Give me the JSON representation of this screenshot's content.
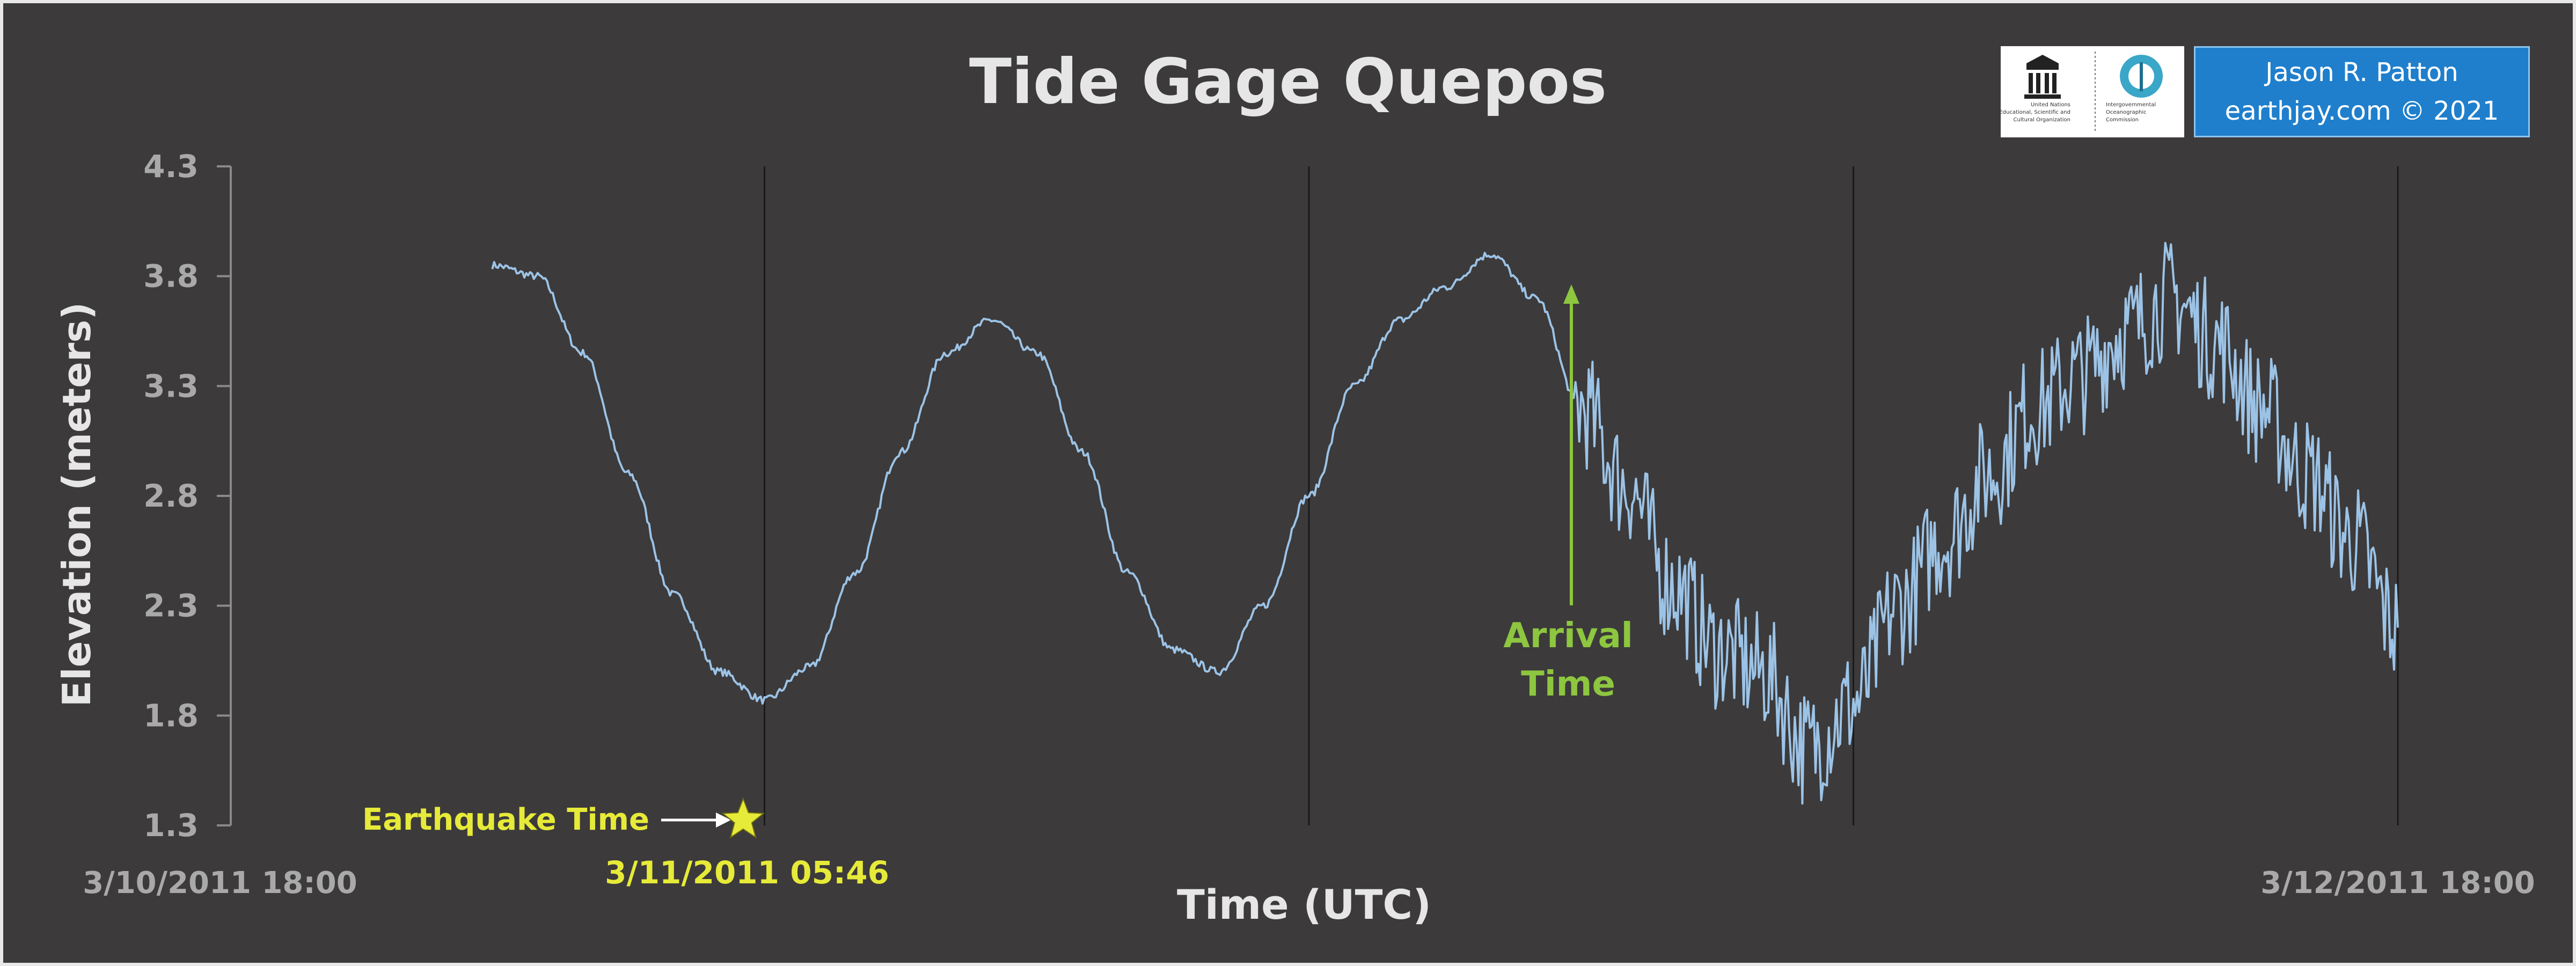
{
  "chart_data": {
    "type": "line",
    "title": "Tide Gage Quepos",
    "xlabel": "Time (UTC)",
    "ylabel": "Elevation (meters)",
    "ylim": [
      1.3,
      4.3
    ],
    "yticks": [
      "4.3",
      "3.8",
      "3.3",
      "2.8",
      "2.3",
      "1.8",
      "1.3"
    ],
    "xlim": [
      "2011-03-10 18:00",
      "2011-03-12 18:00"
    ],
    "xtick_labels": {
      "start": "3/10/2011 18:00",
      "end": "3/12/2011 18:00"
    },
    "vertical_gridlines": [
      "2011-03-11 06:00",
      "2011-03-11 18:00",
      "2011-03-12 06:00",
      "2011-03-12 18:00"
    ],
    "grid": "vertical-only",
    "series": [
      {
        "color": "#9cc3e6",
        "x": [
          "2011-03-11 00:00",
          "2011-03-11 01:00",
          "2011-03-11 02:00",
          "2011-03-11 03:00",
          "2011-03-11 04:00",
          "2011-03-11 05:00",
          "2011-03-11 06:00",
          "2011-03-11 07:00",
          "2011-03-11 08:00",
          "2011-03-11 09:00",
          "2011-03-11 10:00",
          "2011-03-11 11:00",
          "2011-03-11 12:00",
          "2011-03-11 13:00",
          "2011-03-11 14:00",
          "2011-03-11 15:00",
          "2011-03-11 16:00",
          "2011-03-11 17:00",
          "2011-03-11 18:00",
          "2011-03-11 19:00",
          "2011-03-11 20:00",
          "2011-03-11 21:00",
          "2011-03-11 22:00",
          "2011-03-11 23:00",
          "2011-03-12 00:00",
          "2011-03-12 01:00",
          "2011-03-12 02:00",
          "2011-03-12 03:00",
          "2011-03-12 04:00",
          "2011-03-12 05:00",
          "2011-03-12 06:00",
          "2011-03-12 07:00",
          "2011-03-12 08:00",
          "2011-03-12 09:00",
          "2011-03-12 10:00",
          "2011-03-12 11:00",
          "2011-03-12 12:00",
          "2011-03-12 13:00",
          "2011-03-12 14:00",
          "2011-03-12 15:00",
          "2011-03-12 16:00",
          "2011-03-12 17:00",
          "2011-03-12 18:00"
        ],
        "y": [
          3.85,
          3.8,
          3.45,
          2.9,
          2.35,
          2.0,
          1.87,
          2.02,
          2.45,
          3.0,
          3.45,
          3.6,
          3.45,
          3.0,
          2.45,
          2.1,
          2.0,
          2.3,
          2.8,
          3.3,
          3.6,
          3.75,
          3.9,
          3.7,
          3.2,
          2.85,
          2.4,
          2.1,
          2.0,
          1.65,
          1.85,
          2.3,
          2.6,
          2.9,
          3.2,
          3.35,
          3.55,
          3.7,
          3.5,
          3.2,
          2.9,
          2.6,
          2.2
        ]
      }
    ],
    "annotations": [
      {
        "text": "Earthquake Time",
        "x": "2011-03-11 05:46",
        "y": 1.3,
        "color": "#e6ea38"
      },
      {
        "text": "3/11/2011 05:46",
        "x": "2011-03-11 05:46",
        "color": "#e6ea38"
      },
      {
        "text": "Arrival",
        "x": "2011-03-11 23:50",
        "color": "#8dc63f"
      },
      {
        "text": "Time",
        "x": "2011-03-11 23:50",
        "color": "#8dc63f"
      }
    ]
  },
  "credit": {
    "line1": "Jason R. Patton",
    "line2": "earthjay.com © 2021"
  },
  "logos": {
    "unesco_text": [
      "United Nations",
      "Educational, Scientific and",
      "Cultural Organization"
    ],
    "ioc_text": [
      "Intergovernmental",
      "Oceanographic",
      "Commission"
    ]
  },
  "colors": {
    "background": "#3c3a3b",
    "series": "#9cc3e6",
    "earthquake": "#e6ea38",
    "arrival": "#8dc63f"
  }
}
